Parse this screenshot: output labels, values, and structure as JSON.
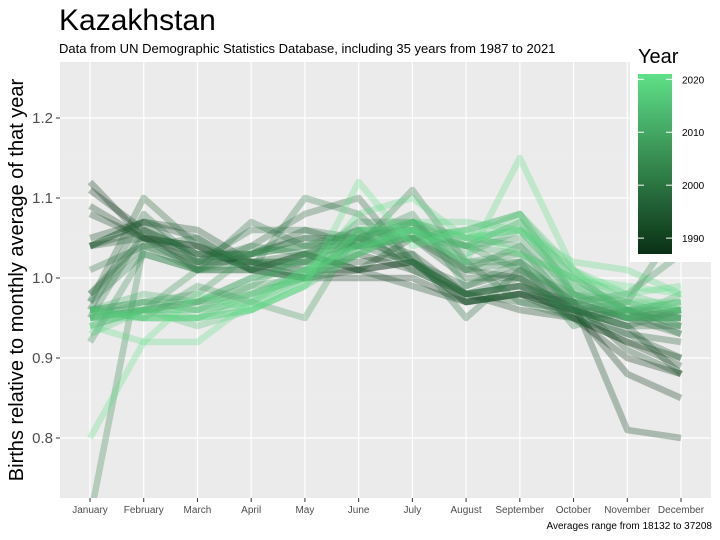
{
  "title": "Kazakhstan",
  "subtitle": "Data from UN Demographic Statistics Database, including 35 years from 1987 to 2021",
  "caption": "Averages range from 18132 to 37208",
  "legend": {
    "title": "Year",
    "ticks": [
      "1990",
      "2000",
      "2010",
      "2020"
    ],
    "tick_years": [
      1990,
      2000,
      2010,
      2020
    ],
    "year_min": 1987,
    "year_max": 2021,
    "color_low": "#0a3015",
    "color_high": "#5fe088"
  },
  "colors": {
    "panel_bg": "#ebebeb",
    "grid_major": "#ffffff",
    "grid_minor": "#f2f2f2"
  },
  "chart_data": {
    "type": "line",
    "title": "Kazakhstan",
    "subtitle": "Data from UN Demographic Statistics Database, including 35 years from 1987 to 2021",
    "xlabel": "",
    "ylabel": "Births relative to monthly average of that year",
    "categories": [
      "January",
      "February",
      "March",
      "April",
      "May",
      "June",
      "July",
      "August",
      "September",
      "October",
      "November",
      "December"
    ],
    "y_ticks": [
      "0.8",
      "0.9",
      "1.0",
      "1.1",
      "1.2"
    ],
    "y_tick_values": [
      0.8,
      0.9,
      1.0,
      1.1,
      1.2
    ],
    "ylim": [
      0.725,
      1.27
    ],
    "line_opacity": 0.3,
    "series": [
      {
        "year": 1987,
        "values": [
          1.11,
          1.06,
          1.03,
          1.02,
          1.0,
          1.01,
          1.02,
          0.98,
          0.99,
          0.95,
          0.9,
          0.88
        ]
      },
      {
        "year": 1988,
        "values": [
          1.12,
          1.05,
          1.04,
          1.01,
          1.0,
          1.0,
          1.0,
          0.97,
          0.98,
          0.96,
          0.88,
          0.85
        ]
      },
      {
        "year": 1989,
        "values": [
          1.09,
          1.05,
          1.02,
          1.02,
          1.01,
          1.01,
          1.02,
          0.97,
          0.98,
          0.95,
          0.92,
          0.89
        ]
      },
      {
        "year": 1990,
        "values": [
          1.08,
          1.05,
          1.04,
          1.01,
          1.0,
          1.03,
          1.01,
          0.98,
          0.96,
          0.95,
          0.92,
          0.9
        ]
      },
      {
        "year": 1991,
        "values": [
          1.05,
          1.07,
          1.05,
          1.01,
          1.03,
          1.01,
          0.99,
          0.97,
          0.98,
          0.97,
          0.81,
          0.8
        ]
      },
      {
        "year": 1992,
        "values": [
          1.04,
          1.07,
          1.06,
          1.02,
          1.02,
          1.02,
          1.03,
          0.98,
          0.99,
          0.97,
          0.91,
          0.88
        ]
      },
      {
        "year": 1993,
        "values": [
          1.04,
          1.06,
          1.01,
          1.01,
          1.03,
          1.01,
          1.05,
          1.01,
          1.0,
          0.96,
          0.94,
          0.88
        ]
      },
      {
        "year": 1994,
        "values": [
          1.04,
          1.05,
          1.01,
          1.03,
          1.05,
          1.05,
          1.02,
          0.99,
          1.01,
          0.96,
          0.93,
          0.9
        ]
      },
      {
        "year": 1995,
        "values": [
          0.98,
          1.05,
          1.03,
          1.03,
          1.06,
          1.04,
          1.05,
          1.0,
          1.0,
          0.95,
          0.93,
          0.92
        ]
      },
      {
        "year": 1996,
        "values": [
          0.97,
          1.1,
          1.04,
          1.02,
          1.03,
          1.06,
          1.01,
          0.98,
          0.97,
          0.96,
          0.94,
          0.94
        ]
      },
      {
        "year": 1997,
        "values": [
          1.04,
          1.07,
          1.02,
          1.04,
          1.08,
          1.1,
          1.02,
          0.97,
          0.98,
          0.96,
          0.95,
          0.93
        ]
      },
      {
        "year": 1998,
        "values": [
          0.96,
          1.08,
          1.02,
          1.06,
          1.06,
          1.05,
          1.03,
          0.95,
          1.01,
          0.97,
          0.95,
          0.95
        ]
      },
      {
        "year": 1999,
        "values": [
          1.01,
          1.04,
          1.01,
          1.07,
          1.04,
          1.04,
          1.02,
          0.98,
          1.0,
          0.96,
          0.94,
          0.96
        ]
      },
      {
        "year": 2000,
        "values": [
          0.98,
          1.04,
          1.05,
          1.01,
          1.1,
          1.08,
          1.02,
          0.98,
          0.99,
          0.96,
          0.96,
          0.93
        ]
      },
      {
        "year": 2001,
        "values": [
          0.95,
          1.06,
          1.03,
          1.03,
          1.05,
          1.04,
          1.11,
          1.02,
          0.97,
          0.95,
          0.96,
          0.95
        ]
      },
      {
        "year": 2002,
        "values": [
          0.97,
          1.03,
          1.01,
          1.04,
          1.03,
          1.04,
          1.07,
          1.01,
          1.02,
          0.94,
          0.96,
          0.94
        ]
      },
      {
        "year": 2003,
        "values": [
          0.7,
          1.04,
          1.02,
          1.03,
          1.04,
          1.06,
          1.06,
          1.01,
          1.04,
          0.96,
          0.97,
          1.07
        ]
      },
      {
        "year": 2004,
        "values": [
          0.92,
          1.03,
          1.01,
          1.01,
          1.02,
          1.05,
          1.08,
          0.99,
          1.02,
          0.97,
          0.98,
          1.03
        ]
      },
      {
        "year": 2005,
        "values": [
          0.95,
          0.96,
          1.01,
          1.02,
          1.02,
          1.07,
          1.07,
          1.02,
          1.02,
          0.97,
          0.95,
          0.95
        ]
      },
      {
        "year": 2006,
        "values": [
          0.96,
          0.97,
          0.98,
          1.03,
          1.04,
          1.05,
          1.07,
          1.04,
          1.01,
          0.98,
          0.95,
          0.96
        ]
      },
      {
        "year": 2007,
        "values": [
          0.96,
          0.95,
          0.99,
          0.97,
          0.95,
          1.06,
          1.05,
          1.02,
          1.03,
          0.97,
          0.95,
          0.96
        ]
      },
      {
        "year": 2008,
        "values": [
          0.94,
          0.96,
          0.97,
          1.0,
          1.02,
          1.04,
          1.06,
          1.04,
          1.05,
          0.98,
          0.96,
          0.94
        ]
      },
      {
        "year": 2009,
        "values": [
          0.96,
          0.96,
          0.97,
          0.99,
          1.03,
          1.05,
          1.07,
          1.05,
          1.04,
          0.98,
          0.97,
          0.95
        ]
      },
      {
        "year": 2010,
        "values": [
          0.95,
          0.97,
          0.96,
          0.99,
          1.0,
          1.05,
          1.05,
          1.04,
          1.03,
          1.0,
          0.96,
          0.96
        ]
      },
      {
        "year": 2011,
        "values": [
          0.96,
          0.97,
          0.97,
          1.0,
          1.01,
          1.03,
          1.06,
          1.03,
          1.06,
          0.99,
          0.96,
          0.97
        ]
      },
      {
        "year": 2012,
        "values": [
          0.96,
          0.98,
          0.97,
          0.98,
          1.01,
          1.04,
          1.05,
          1.06,
          1.08,
          0.98,
          0.95,
          0.98
        ]
      },
      {
        "year": 2013,
        "values": [
          0.95,
          0.96,
          0.96,
          0.98,
          1.0,
          1.05,
          1.06,
          1.04,
          1.07,
          1.0,
          0.96,
          0.96
        ]
      },
      {
        "year": 2014,
        "values": [
          0.96,
          0.95,
          0.95,
          0.97,
          1.0,
          1.04,
          1.05,
          1.06,
          1.08,
          1.01,
          0.95,
          0.95
        ]
      },
      {
        "year": 2015,
        "values": [
          0.95,
          0.96,
          0.94,
          0.96,
          0.99,
          1.03,
          1.06,
          1.04,
          1.07,
          0.98,
          0.96,
          0.97
        ]
      },
      {
        "year": 2016,
        "values": [
          0.93,
          0.96,
          0.95,
          0.98,
          1.0,
          1.03,
          1.07,
          1.05,
          1.06,
          0.99,
          0.97,
          0.96
        ]
      },
      {
        "year": 2017,
        "values": [
          0.94,
          0.96,
          0.96,
          0.97,
          1.01,
          1.06,
          1.06,
          1.05,
          1.08,
          1.0,
          0.98,
          0.96
        ]
      },
      {
        "year": 2018,
        "values": [
          0.95,
          0.95,
          0.95,
          0.96,
          0.99,
          1.06,
          1.07,
          1.07,
          1.06,
          1.01,
          0.97,
          0.97
        ]
      },
      {
        "year": 2019,
        "values": [
          0.96,
          0.95,
          0.95,
          0.96,
          1.0,
          1.08,
          1.1,
          1.05,
          1.06,
          1.02,
          1.01,
          0.98
        ]
      },
      {
        "year": 2020,
        "values": [
          0.94,
          0.92,
          0.92,
          0.97,
          1.01,
          1.04,
          1.06,
          1.02,
          1.15,
          1.01,
          0.98,
          0.99
        ]
      },
      {
        "year": 2021,
        "values": [
          0.8,
          0.92,
          0.98,
          0.96,
          0.99,
          1.12,
          1.04,
          1.06,
          1.03,
          1.0,
          0.99,
          0.98
        ]
      }
    ]
  }
}
